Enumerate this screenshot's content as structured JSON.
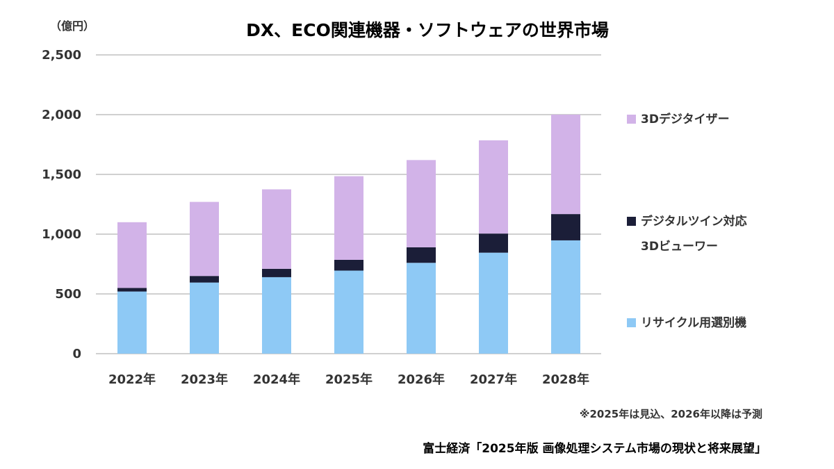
{
  "chart_data": {
    "type": "bar",
    "stacked": true,
    "title": "DX、ECO関連機器・ソフトウェアの世界市場",
    "unit_label": "（億円）",
    "categories": [
      "2022年",
      "2023年",
      "2024年",
      "2025年",
      "2026年",
      "2027年",
      "2028年"
    ],
    "series": [
      {
        "name": "リサイクル用選別機",
        "color": "#8EC9F5",
        "values": [
          520,
          595,
          640,
          695,
          760,
          845,
          948
        ]
      },
      {
        "name": "デジタルツイン対応 3Dビューワー",
        "name_lines": [
          "デジタルツイン対応",
          "3Dビューワー"
        ],
        "color": "#1B1E38",
        "values": [
          30,
          55,
          70,
          90,
          130,
          160,
          220
        ]
      },
      {
        "name": "3Dデジタイザー",
        "color": "#D2B3E8",
        "values": [
          550,
          620,
          665,
          700,
          730,
          780,
          832
        ]
      }
    ],
    "ylim": [
      0,
      2500
    ],
    "yticks": [
      0,
      500,
      1000,
      1500,
      2000,
      2500
    ],
    "ytick_labels": [
      "0",
      "500",
      "1,000",
      "1,500",
      "2,000",
      "2,500"
    ],
    "grid": true,
    "legend_position": "right",
    "note": "※2025年は見込、2026年以降は予測",
    "source": "富士経済「2025年版 画像処理システム市場の現状と将来展望」"
  },
  "colors": {
    "gridline": "#A0A0A0",
    "axis_text": "#333333"
  }
}
